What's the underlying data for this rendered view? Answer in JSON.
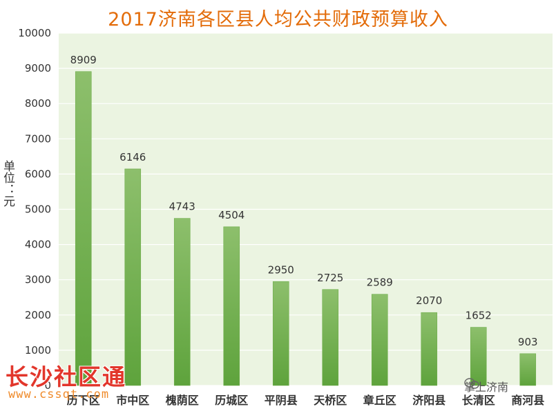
{
  "chart_data": {
    "type": "bar",
    "title": "2017济南各区县人均公共财政预算收入",
    "ylabel": "单位：元",
    "categories": [
      "历下区",
      "市中区",
      "槐荫区",
      "历城区",
      "平阴县",
      "天桥区",
      "章丘区",
      "济阳县",
      "长清区",
      "商河县"
    ],
    "values": [
      8909,
      6146,
      4743,
      4504,
      2950,
      2725,
      2589,
      2070,
      1652,
      903
    ],
    "ylim": [
      0,
      10000
    ],
    "yticks": [
      0,
      1000,
      2000,
      3000,
      4000,
      5000,
      6000,
      7000,
      8000,
      9000,
      10000
    ],
    "grid": true,
    "colors": {
      "bar_top": "#8dbf6c",
      "bar_bottom": "#5ea33c",
      "plot_bg": "#ebf4e1",
      "title": "#e36c0a"
    }
  },
  "watermark": {
    "main": "长沙社区通",
    "sub": "www.cssqt.com",
    "account": "掌上济南",
    "icon": "wechat-icon"
  }
}
